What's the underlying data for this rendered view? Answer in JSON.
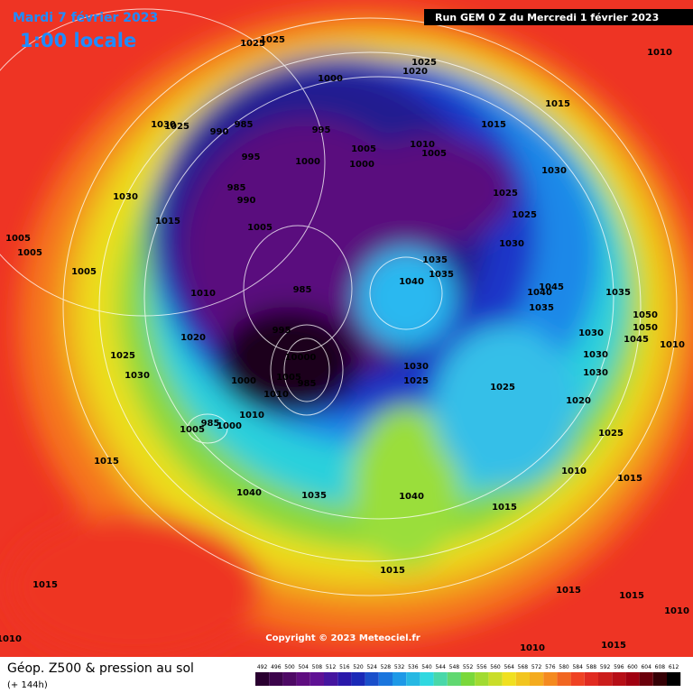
{
  "header": {
    "date": "Mardi 7 février 2023",
    "local_time": "1:00 locale",
    "run": "Run GEM 0 Z du Mercredi 1 février 2023"
  },
  "map": {
    "copyright": "Copyright © 2023 Meteociel.fr",
    "isobar_labels": [
      "1025",
      "1025",
      "1010",
      "1025",
      "1020",
      "1000",
      "1015",
      "1015",
      "1030",
      "1025",
      "990",
      "985",
      "995",
      "1005",
      "1010",
      "1005",
      "995",
      "1000",
      "1000",
      "1030",
      "985",
      "990",
      "1030",
      "1025",
      "1025",
      "1015",
      "1005",
      "1030",
      "1005",
      "1005",
      "1035",
      "1035",
      "1005",
      "1040",
      "985",
      "1045",
      "1040",
      "1010",
      "1035",
      "1035",
      "995",
      "1050",
      "1050",
      "1030",
      "1020",
      "1045",
      "1010",
      "1025",
      "1030",
      "1030",
      "1030",
      "1025",
      "10000",
      "1005",
      "985",
      "1000",
      "1010",
      "1025",
      "1030",
      "1020",
      "1010",
      "985",
      "1005",
      "1000",
      "1025",
      "1010",
      "1015",
      "1015",
      "1040",
      "1035",
      "1040",
      "1015",
      "1015",
      "1015",
      "1015",
      "1015",
      "1010",
      "1010",
      "1015",
      "1010"
    ]
  },
  "footer": {
    "title": "Géop. Z500 & pression au sol",
    "lead": "(+ 144h)",
    "colorbar": {
      "labels": [
        492,
        496,
        500,
        504,
        508,
        512,
        516,
        520,
        524,
        528,
        532,
        536,
        540,
        544,
        548,
        552,
        556,
        560,
        564,
        568,
        572,
        576,
        580,
        584,
        588,
        592,
        596,
        600,
        604,
        608,
        612
      ]
    }
  }
}
